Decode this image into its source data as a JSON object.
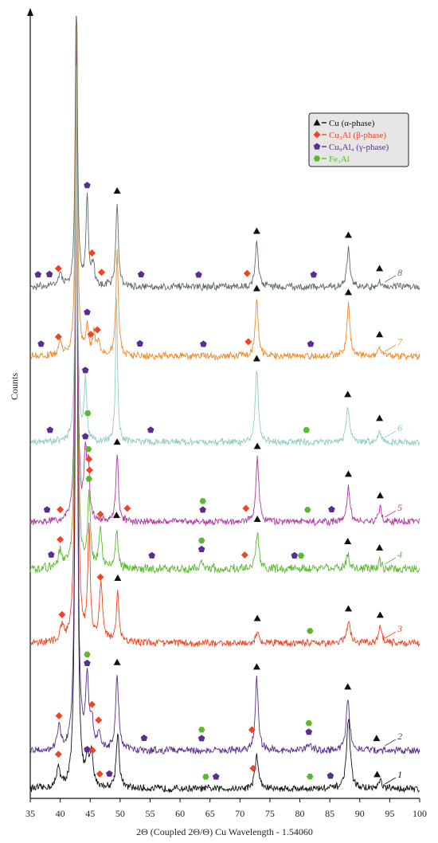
{
  "chart_data": {
    "type": "line",
    "title": "",
    "xlabel": "2Θ (Coupled 2Θ/Θ) Cu Wavelength - 1.54060",
    "ylabel": "Counts",
    "xlim": [
      35,
      100
    ],
    "x_ticks": [
      "35",
      "40",
      "45",
      "50",
      "55",
      "60",
      "65",
      "70",
      "75",
      "80",
      "85",
      "90",
      "95",
      "100"
    ],
    "legend_position": "top-right",
    "legend": [
      {
        "marker": "triangle",
        "color": "#111111",
        "label": "Cu (α-phase)"
      },
      {
        "marker": "diamond",
        "color": "#ee4422",
        "label": "Cu₃Al (β-phase)"
      },
      {
        "marker": "pentagon",
        "color": "#5a2d91",
        "label": "Cu₉Al₄ (γ-phase)"
      },
      {
        "marker": "hexagon",
        "color": "#5cb82e",
        "label": "Fe₃Al"
      }
    ],
    "series": [
      {
        "name": "1",
        "color": "#111111",
        "baseline": 0,
        "noise": 4,
        "peaks": [
          [
            39.7,
            28,
            0.3
          ],
          [
            42.7,
            1000,
            0.2
          ],
          [
            44.5,
            26,
            0.3
          ],
          [
            45.2,
            40,
            0.35
          ],
          [
            49.6,
            70,
            0.3
          ],
          [
            72.8,
            42,
            0.35
          ],
          [
            88.1,
            90,
            0.35
          ],
          [
            93.4,
            10,
            0.3
          ]
        ],
        "markers": [
          {
            "type": "diamond",
            "x": 39.7
          },
          {
            "type": "pentagon",
            "x": 44.5
          },
          {
            "type": "diamond",
            "x": 45.4
          },
          {
            "type": "diamond",
            "x": 46.6
          },
          {
            "type": "pentagon",
            "x": 48.2
          },
          {
            "type": "hexagon",
            "x": 64.3
          },
          {
            "type": "pentagon",
            "x": 66.0
          },
          {
            "type": "diamond",
            "x": 72.2
          },
          {
            "type": "hexagon",
            "x": 81.7
          },
          {
            "type": "pentagon",
            "x": 85.1
          },
          {
            "type": "triangle",
            "x": 92.9
          }
        ]
      },
      {
        "name": "2",
        "color": "#5a2d91",
        "baseline": 48,
        "noise": 4,
        "peaks": [
          [
            39.8,
            28,
            0.3
          ],
          [
            42.7,
            1000,
            0.2
          ],
          [
            44.5,
            90,
            0.3
          ],
          [
            45.3,
            30,
            0.3
          ],
          [
            46.5,
            20,
            0.3
          ],
          [
            49.5,
            95,
            0.3
          ],
          [
            72.8,
            90,
            0.3
          ],
          [
            88.0,
            65,
            0.35
          ],
          [
            81.5,
            8,
            0.4
          ]
        ],
        "markers": [
          {
            "type": "diamond",
            "x": 39.8
          },
          {
            "type": "pentagon",
            "x": 44.5
          },
          {
            "type": "hexagon",
            "x": 44.5
          },
          {
            "type": "diamond",
            "x": 45.3
          },
          {
            "type": "diamond",
            "x": 46.4
          },
          {
            "type": "triangle",
            "x": 49.5
          },
          {
            "type": "pentagon",
            "x": 54.0
          },
          {
            "type": "pentagon",
            "x": 63.6
          },
          {
            "type": "hexagon",
            "x": 63.6
          },
          {
            "type": "triangle",
            "x": 72.8
          },
          {
            "type": "diamond",
            "x": 72.0
          },
          {
            "type": "pentagon",
            "x": 81.5
          },
          {
            "type": "hexagon",
            "x": 81.5
          },
          {
            "type": "triangle",
            "x": 88.0
          },
          {
            "type": "triangle",
            "x": 92.8
          }
        ]
      },
      {
        "name": "3",
        "color": "#ee4422",
        "baseline": 183,
        "noise": 4,
        "peaks": [
          [
            40.3,
            20,
            0.3
          ],
          [
            42.7,
            900,
            0.2
          ],
          [
            44.8,
            140,
            0.25
          ],
          [
            46.8,
            70,
            0.35
          ],
          [
            49.6,
            65,
            0.25
          ],
          [
            72.9,
            16,
            0.3
          ],
          [
            88.1,
            28,
            0.35
          ],
          [
            93.4,
            20,
            0.3
          ]
        ],
        "markers": [
          {
            "type": "diamond",
            "x": 40.3
          },
          {
            "type": "diamond",
            "x": 46.7
          },
          {
            "type": "triangle",
            "x": 49.6
          },
          {
            "type": "triangle",
            "x": 72.9
          },
          {
            "type": "hexagon",
            "x": 81.7
          },
          {
            "type": "triangle",
            "x": 88.1
          },
          {
            "type": "triangle",
            "x": 93.4
          }
        ]
      },
      {
        "name": "4",
        "color": "#5cb82e",
        "baseline": 276,
        "noise": 5,
        "peaks": [
          [
            40.0,
            20,
            0.35
          ],
          [
            42.7,
            730,
            0.2
          ],
          [
            44.8,
            95,
            0.25
          ],
          [
            46.7,
            50,
            0.3
          ],
          [
            49.4,
            50,
            0.25
          ],
          [
            72.9,
            46,
            0.3
          ],
          [
            88.0,
            18,
            0.35
          ],
          [
            93.3,
            10,
            0.3
          ],
          [
            63.6,
            8,
            0.4
          ]
        ],
        "markers": [
          {
            "type": "pentagon",
            "x": 38.5
          },
          {
            "type": "diamond",
            "x": 40.0
          },
          {
            "type": "hexagon",
            "x": 44.8
          },
          {
            "type": "diamond",
            "x": 44.9
          },
          {
            "type": "diamond",
            "x": 46.7
          },
          {
            "type": "triangle",
            "x": 49.4
          },
          {
            "type": "pentagon",
            "x": 55.3
          },
          {
            "type": "pentagon",
            "x": 63.6
          },
          {
            "type": "hexagon",
            "x": 63.6
          },
          {
            "type": "diamond",
            "x": 70.8
          },
          {
            "type": "triangle",
            "x": 72.9
          },
          {
            "type": "pentagon",
            "x": 79.1
          },
          {
            "type": "hexagon",
            "x": 80.2
          },
          {
            "type": "triangle",
            "x": 88.0
          },
          {
            "type": "triangle",
            "x": 93.3
          }
        ]
      },
      {
        "name": "5",
        "color": "#b0399e",
        "baseline": 335,
        "noise": 4,
        "peaks": [
          [
            42.7,
            650,
            0.2
          ],
          [
            44.2,
            80,
            0.25
          ],
          [
            44.7,
            60,
            0.25
          ],
          [
            49.5,
            85,
            0.25
          ],
          [
            72.9,
            80,
            0.3
          ],
          [
            88.1,
            45,
            0.3
          ],
          [
            93.4,
            18,
            0.3
          ]
        ],
        "markers": [
          {
            "type": "pentagon",
            "x": 37.8
          },
          {
            "type": "diamond",
            "x": 40.0
          },
          {
            "type": "pentagon",
            "x": 44.2
          },
          {
            "type": "hexagon",
            "x": 44.7
          },
          {
            "type": "diamond",
            "x": 44.8
          },
          {
            "type": "triangle",
            "x": 49.5
          },
          {
            "type": "diamond",
            "x": 51.2
          },
          {
            "type": "pentagon",
            "x": 63.8
          },
          {
            "type": "hexagon",
            "x": 63.8
          },
          {
            "type": "diamond",
            "x": 71.0
          },
          {
            "type": "triangle",
            "x": 72.9
          },
          {
            "type": "hexagon",
            "x": 81.3
          },
          {
            "type": "pentagon",
            "x": 85.3
          },
          {
            "type": "triangle",
            "x": 88.1
          },
          {
            "type": "triangle",
            "x": 93.4
          }
        ]
      },
      {
        "name": "6",
        "color": "#8ecdc4",
        "baseline": 435,
        "noise": 4,
        "peaks": [
          [
            42.7,
            470,
            0.2
          ],
          [
            44.2,
            75,
            0.25
          ],
          [
            49.4,
            180,
            0.2
          ],
          [
            72.8,
            90,
            0.3
          ],
          [
            88.0,
            45,
            0.3
          ],
          [
            93.3,
            15,
            0.3
          ]
        ],
        "markers": [
          {
            "type": "pentagon",
            "x": 38.3
          },
          {
            "type": "pentagon",
            "x": 44.2
          },
          {
            "type": "hexagon",
            "x": 44.6
          },
          {
            "type": "pentagon",
            "x": 55.1
          },
          {
            "type": "triangle",
            "x": 72.8
          },
          {
            "type": "hexagon",
            "x": 81.1
          },
          {
            "type": "triangle",
            "x": 88.0
          },
          {
            "type": "triangle",
            "x": 93.3
          }
        ]
      },
      {
        "name": "7",
        "color": "#f08a2c",
        "baseline": 543,
        "noise": 4,
        "peaks": [
          [
            40.0,
            18,
            0.3
          ],
          [
            42.7,
            470,
            0.2
          ],
          [
            44.5,
            38,
            0.25
          ],
          [
            45.6,
            28,
            0.25
          ],
          [
            46.4,
            20,
            0.25
          ],
          [
            49.5,
            130,
            0.25
          ],
          [
            72.8,
            70,
            0.3
          ],
          [
            88.1,
            65,
            0.3
          ],
          [
            93.3,
            12,
            0.3
          ]
        ],
        "markers": [
          {
            "type": "pentagon",
            "x": 36.8
          },
          {
            "type": "diamond",
            "x": 39.7
          },
          {
            "type": "pentagon",
            "x": 44.5
          },
          {
            "type": "diamond",
            "x": 45.1
          },
          {
            "type": "diamond",
            "x": 46.2
          },
          {
            "type": "pentagon",
            "x": 53.3
          },
          {
            "type": "pentagon",
            "x": 63.9
          },
          {
            "type": "diamond",
            "x": 71.4
          },
          {
            "type": "triangle",
            "x": 72.8
          },
          {
            "type": "pentagon",
            "x": 81.8
          },
          {
            "type": "triangle",
            "x": 88.1
          },
          {
            "type": "triangle",
            "x": 93.3
          }
        ]
      },
      {
        "name": "8",
        "color": "#5e6d6a",
        "baseline": 630,
        "noise": 4,
        "peaks": [
          [
            40.0,
            15,
            0.3
          ],
          [
            42.7,
            400,
            0.2
          ],
          [
            44.5,
            110,
            0.25
          ],
          [
            45.5,
            25,
            0.3
          ],
          [
            49.5,
            105,
            0.25
          ],
          [
            72.8,
            55,
            0.3
          ],
          [
            88.1,
            50,
            0.3
          ],
          [
            93.3,
            8,
            0.3
          ]
        ],
        "markers": [
          {
            "type": "pentagon",
            "x": 36.3
          },
          {
            "type": "pentagon",
            "x": 38.2
          },
          {
            "type": "diamond",
            "x": 39.7
          },
          {
            "type": "pentagon",
            "x": 44.5
          },
          {
            "type": "diamond",
            "x": 45.3
          },
          {
            "type": "diamond",
            "x": 46.9
          },
          {
            "type": "triangle",
            "x": 49.5
          },
          {
            "type": "pentagon",
            "x": 53.5
          },
          {
            "type": "pentagon",
            "x": 63.1
          },
          {
            "type": "diamond",
            "x": 71.2
          },
          {
            "type": "triangle",
            "x": 72.8
          },
          {
            "type": "pentagon",
            "x": 82.3
          },
          {
            "type": "triangle",
            "x": 88.1
          },
          {
            "type": "triangle",
            "x": 93.3
          }
        ]
      }
    ]
  }
}
